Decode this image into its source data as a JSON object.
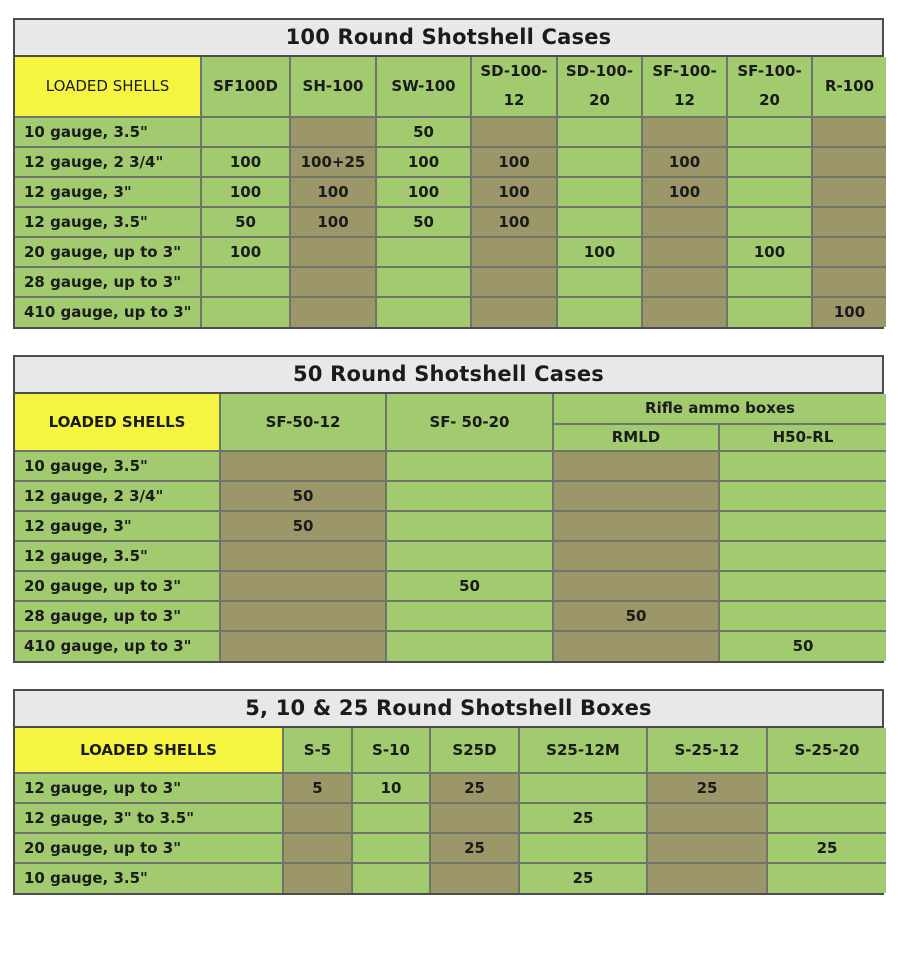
{
  "colors": {
    "green": "#a2cb70",
    "olive": "#9b9768",
    "yellow": "#f4f441",
    "title_bg": "#e8e8e8",
    "text": "#1b1b1b"
  },
  "tables": [
    {
      "name": "100-round-shotshell-cases",
      "title": "100 Round Shotshell Cases",
      "corner_label": "LOADED SHELLS",
      "columns": [
        "SF100D",
        "SH-100",
        "SW-100",
        "SD-100-12",
        "SD-100-20",
        "SF-100-12",
        "SF-100-20",
        "R-100"
      ],
      "col_shades": [
        "green",
        "olive",
        "green",
        "olive",
        "green",
        "olive",
        "green",
        "olive"
      ],
      "rows": [
        {
          "label": "10 gauge, 3.5\"",
          "values": [
            "",
            "",
            "50",
            "",
            "",
            "",
            "",
            ""
          ]
        },
        {
          "label": "12 gauge, 2 3/4\"",
          "values": [
            "100",
            "100+25",
            "100",
            "100",
            "",
            "100",
            "",
            ""
          ]
        },
        {
          "label": "12 gauge, 3\"",
          "values": [
            "100",
            "100",
            "100",
            "100",
            "",
            "100",
            "",
            ""
          ]
        },
        {
          "label": "12 gauge, 3.5\"",
          "values": [
            "50",
            "100",
            "50",
            "100",
            "",
            "",
            "",
            ""
          ]
        },
        {
          "label": "20 gauge, up to 3\"",
          "values": [
            "100",
            "",
            "",
            "",
            "100",
            "",
            "100",
            ""
          ]
        },
        {
          "label": "28 gauge, up to 3\"",
          "values": [
            "",
            "",
            "",
            "",
            "",
            "",
            "",
            ""
          ]
        },
        {
          "label": "410 gauge, up to 3\"",
          "values": [
            "",
            "",
            "",
            "",
            "",
            "",
            "",
            "100"
          ]
        }
      ]
    },
    {
      "name": "50-round-shotshell-cases",
      "title": "50 Round Shotshell Cases",
      "corner_label": "LOADED SHELLS",
      "header_rows": [
        [
          {
            "label": "SF-50-12",
            "rowspan": 2
          },
          {
            "label": "SF- 50-20",
            "rowspan": 2
          },
          {
            "label": "Rifle ammo boxes",
            "colspan": 2
          }
        ],
        [
          {
            "label": "RMLD"
          },
          {
            "label": "H50-RL"
          }
        ]
      ],
      "col_shades": [
        "olive",
        "green",
        "olive",
        "green"
      ],
      "rows": [
        {
          "label": "10 gauge, 3.5\"",
          "values": [
            "",
            "",
            "",
            ""
          ]
        },
        {
          "label": "12 gauge, 2 3/4\"",
          "values": [
            "50",
            "",
            "",
            ""
          ]
        },
        {
          "label": "12 gauge, 3\"",
          "values": [
            "50",
            "",
            "",
            ""
          ]
        },
        {
          "label": "12 gauge, 3.5\"",
          "values": [
            "",
            "",
            "",
            ""
          ]
        },
        {
          "label": "20 gauge, up to 3\"",
          "values": [
            "",
            "50",
            "",
            ""
          ]
        },
        {
          "label": "28 gauge, up to 3\"",
          "values": [
            "",
            "",
            "50",
            ""
          ]
        },
        {
          "label": "410 gauge, up to 3\"",
          "values": [
            "",
            "",
            "",
            "50"
          ]
        }
      ]
    },
    {
      "name": "5-10-25-round-shotshell-boxes",
      "title": "5, 10 & 25 Round Shotshell Boxes",
      "corner_label": "LOADED SHELLS",
      "columns": [
        "S-5",
        "S-10",
        "S25D",
        "S25-12M",
        "S-25-12",
        "S-25-20"
      ],
      "col_shades": [
        "olive",
        "green",
        "olive",
        "green",
        "olive",
        "green"
      ],
      "rows": [
        {
          "label": "12 gauge, up to 3\"",
          "values": [
            "5",
            "10",
            "25",
            "",
            "25",
            ""
          ]
        },
        {
          "label": "12 gauge, 3\" to 3.5\"",
          "values": [
            "",
            "",
            "",
            "25",
            "",
            ""
          ]
        },
        {
          "label": "20 gauge, up to 3\"",
          "values": [
            "",
            "",
            "25",
            "",
            "",
            "25"
          ]
        },
        {
          "label": "10 gauge, 3.5\"",
          "values": [
            "",
            "",
            "",
            "25",
            "",
            ""
          ]
        }
      ]
    }
  ]
}
